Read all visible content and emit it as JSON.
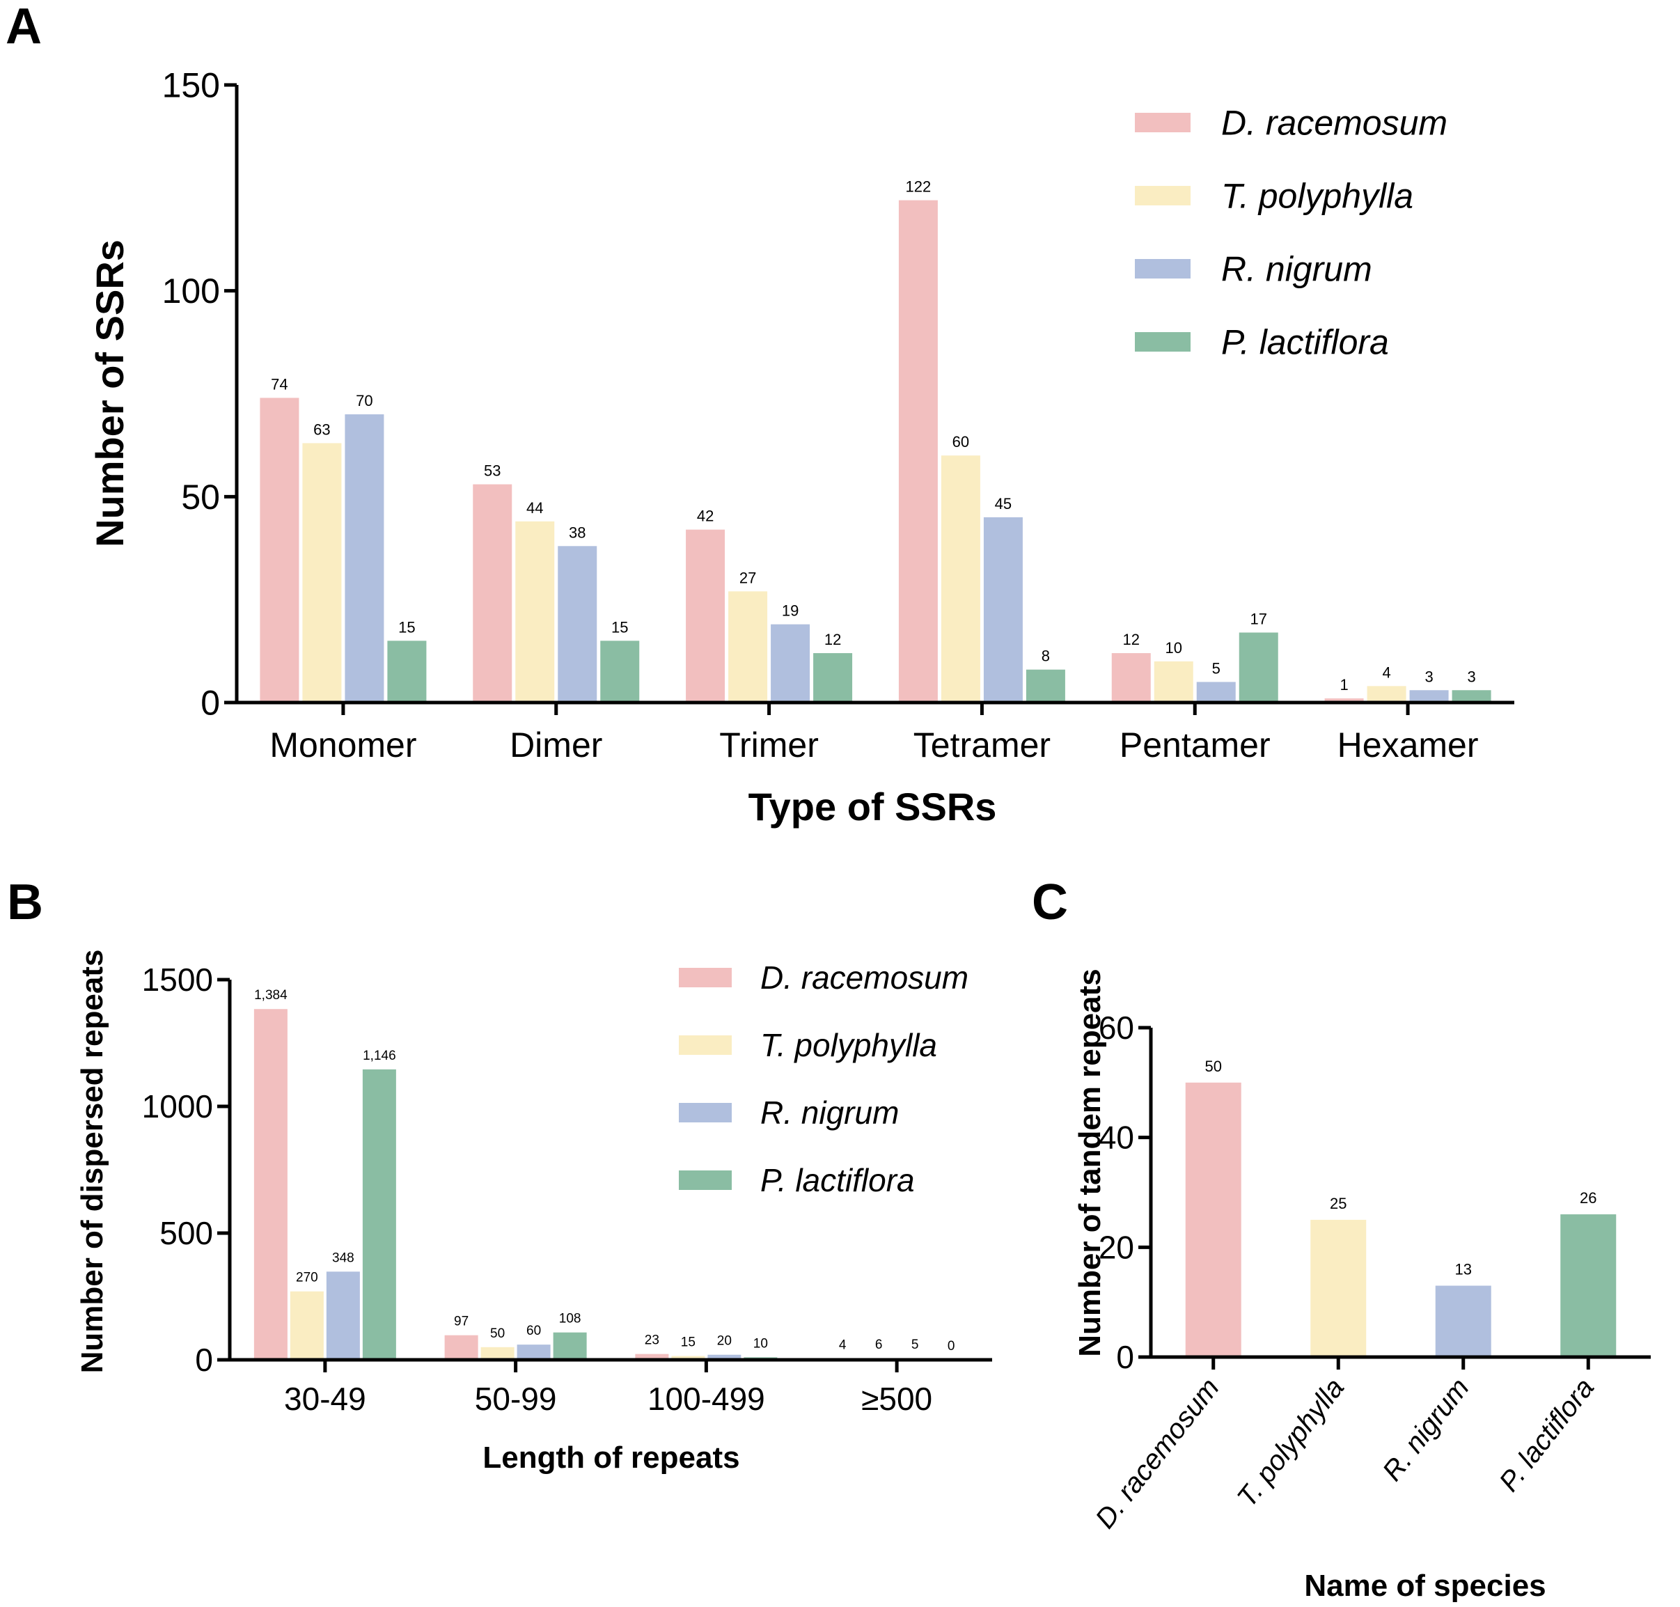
{
  "colors": {
    "D. racemosum": "#f2bfbf",
    "T. polyphylla": "#faedc2",
    "R. nigrum": "#b0bfde",
    "P. lactiflora": "#8abda3"
  },
  "panel_letters": {
    "a": "A",
    "b": "B",
    "c": "C"
  },
  "chart_data": [
    {
      "panel": "A",
      "type": "bar",
      "title": "",
      "xlabel": "Type of SSRs",
      "ylabel": "Number of SSRs",
      "ylim": [
        0,
        150
      ],
      "yticks": [
        0,
        50,
        100,
        150
      ],
      "ytick_labels": [
        "0",
        "50",
        "100",
        "150"
      ],
      "categories": [
        "Monomer",
        "Dimer",
        "Trimer",
        "Tetramer",
        "Pentamer",
        "Hexamer"
      ],
      "series": [
        {
          "name": "D. racemosum",
          "values": [
            74,
            53,
            42,
            122,
            12,
            1
          ],
          "labels": [
            "74",
            "53",
            "42",
            "122",
            "12",
            "1"
          ]
        },
        {
          "name": "T. polyphylla",
          "values": [
            63,
            44,
            27,
            60,
            10,
            4
          ],
          "labels": [
            "63",
            "44",
            "27",
            "60",
            "10",
            "4"
          ]
        },
        {
          "name": "R. nigrum",
          "values": [
            70,
            38,
            19,
            45,
            5,
            3
          ],
          "labels": [
            "70",
            "38",
            "19",
            "45",
            "5",
            "3"
          ]
        },
        {
          "name": "P. lactiflora",
          "values": [
            15,
            15,
            12,
            8,
            17,
            3
          ],
          "labels": [
            "15",
            "15",
            "12",
            "8",
            "17",
            "3"
          ]
        }
      ],
      "legend": "top-right"
    },
    {
      "panel": "B",
      "type": "bar",
      "title": "",
      "xlabel": "Length of repeats",
      "ylabel": "Number of dispersed repeats",
      "ylim": [
        0,
        1500
      ],
      "yticks": [
        0,
        500,
        1000,
        1500
      ],
      "ytick_labels": [
        "0",
        "500",
        "1000",
        "1500"
      ],
      "categories": [
        "30-49",
        "50-99",
        "100-499",
        "≥500"
      ],
      "series": [
        {
          "name": "D. racemosum",
          "values": [
            1384,
            97,
            23,
            4
          ],
          "labels": [
            "1,384",
            "97",
            "23",
            "4"
          ]
        },
        {
          "name": "T. polyphylla",
          "values": [
            270,
            50,
            15,
            6
          ],
          "labels": [
            "270",
            "50",
            "15",
            "6"
          ]
        },
        {
          "name": "R. nigrum",
          "values": [
            348,
            60,
            20,
            5
          ],
          "labels": [
            "348",
            "60",
            "20",
            "5"
          ]
        },
        {
          "name": "P. lactiflora",
          "values": [
            1146,
            108,
            10,
            0
          ],
          "labels": [
            "1,146",
            "108",
            "10",
            "0"
          ]
        }
      ],
      "legend": "top-right"
    },
    {
      "panel": "C",
      "type": "bar",
      "title": "",
      "xlabel": "Name of species",
      "ylabel": "Number of tandem repeats",
      "ylim": [
        0,
        60
      ],
      "yticks": [
        0,
        20,
        40,
        60
      ],
      "ytick_labels": [
        "0",
        "20",
        "40",
        "60"
      ],
      "categories": [
        "D. racemosum",
        "T. polyphylla",
        "R. nigrum",
        "P. lactiflora"
      ],
      "values": [
        50,
        25,
        13,
        26
      ],
      "labels": [
        "50",
        "25",
        "13",
        "26"
      ]
    }
  ]
}
